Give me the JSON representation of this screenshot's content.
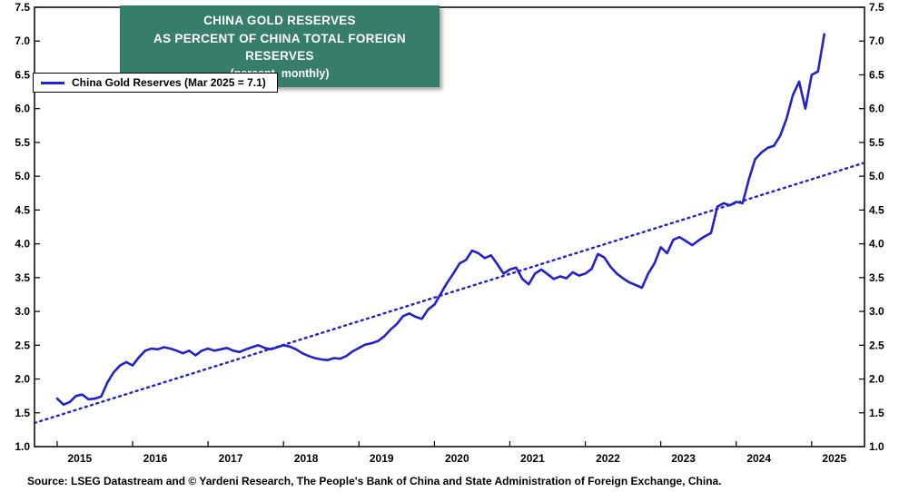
{
  "title": {
    "line1": "CHINA GOLD RESERVES",
    "line2": "AS PERCENT OF CHINA TOTAL FOREIGN RESERVES",
    "line3": "(percent, monthly)"
  },
  "legend": {
    "label": "China Gold Reserves (Mar 2025 = 7.1)"
  },
  "source": "Source: LSEG Datastream and © Yardeni Research, The People's Bank of China and State Administration of Foreign Exchange, China.",
  "colors": {
    "line": "#2222CC",
    "trend": "#2222CC",
    "title_bg": "#377D6B",
    "title_text": "#FFFFFF",
    "axis": "#000000",
    "background": "#FFFFFF"
  },
  "chart_data": {
    "type": "line",
    "title": "China Gold Reserves as Percent of China Total Foreign Reserves (percent, monthly)",
    "xlabel": "",
    "ylabel": "percent",
    "grid": false,
    "legend_position": "top-left",
    "x_axis": {
      "min": 2014.7,
      "max": 2025.7,
      "tick_years": [
        2015,
        2016,
        2017,
        2018,
        2019,
        2020,
        2021,
        2022,
        2023,
        2024,
        2025
      ],
      "label_offset": 0.3
    },
    "y_axis": {
      "min": 1.0,
      "max": 7.5,
      "tick_step": 0.5,
      "labels_both_sides": true
    },
    "series": [
      {
        "name": "China Gold Reserves",
        "frequency": "monthly",
        "start_year": 2015,
        "start_month": 1,
        "end_label": "Mar 2025",
        "end_value": 7.1,
        "values": [
          1.71,
          1.62,
          1.66,
          1.75,
          1.77,
          1.7,
          1.71,
          1.74,
          1.95,
          2.1,
          2.2,
          2.25,
          2.2,
          2.32,
          2.42,
          2.45,
          2.44,
          2.47,
          2.45,
          2.42,
          2.38,
          2.42,
          2.35,
          2.42,
          2.45,
          2.42,
          2.44,
          2.46,
          2.42,
          2.4,
          2.44,
          2.47,
          2.5,
          2.46,
          2.44,
          2.47,
          2.5,
          2.48,
          2.44,
          2.38,
          2.34,
          2.31,
          2.29,
          2.28,
          2.31,
          2.3,
          2.34,
          2.41,
          2.46,
          2.51,
          2.53,
          2.56,
          2.63,
          2.73,
          2.81,
          2.93,
          2.97,
          2.92,
          2.89,
          3.03,
          3.1,
          3.26,
          3.42,
          3.56,
          3.71,
          3.76,
          3.9,
          3.86,
          3.79,
          3.83,
          3.7,
          3.56,
          3.62,
          3.65,
          3.48,
          3.4,
          3.56,
          3.62,
          3.55,
          3.48,
          3.52,
          3.49,
          3.58,
          3.53,
          3.56,
          3.63,
          3.85,
          3.8,
          3.66,
          3.56,
          3.49,
          3.43,
          3.39,
          3.35,
          3.56,
          3.71,
          3.95,
          3.86,
          4.06,
          4.1,
          4.04,
          3.98,
          4.05,
          4.11,
          4.16,
          4.55,
          4.6,
          4.57,
          4.62,
          4.6,
          4.95,
          5.25,
          5.35,
          5.42,
          5.45,
          5.6,
          5.85,
          6.2,
          6.4,
          6.0,
          6.5,
          6.55,
          7.1
        ]
      }
    ],
    "trend_line": {
      "style": "dotted",
      "x": [
        2014.7,
        2025.7
      ],
      "y": [
        1.35,
        5.2
      ]
    }
  }
}
